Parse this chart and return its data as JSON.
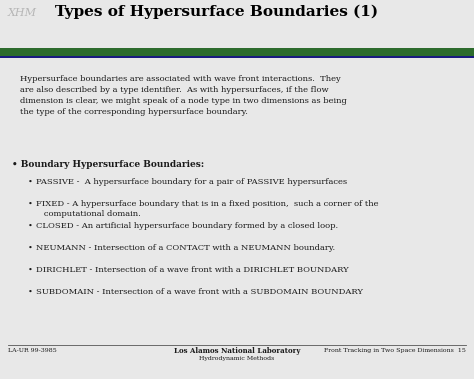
{
  "title": "Types of Hypersurface Boundaries (1)",
  "logo_text": "XHM",
  "bg_color": "#e8e8e8",
  "title_color": "#000000",
  "title_fontsize": 11,
  "header_line_green": "#2d6b2d",
  "header_line_blue": "#1a3a6b",
  "body_text": "Hypersurface boundaries are associated with wave front interactions.  They\nare also described by a type identifier.  As with hypersurfaces, if the flow\ndimension is clear, we might speak of a node type in two dimensions as being\nthe type of the corresponding hypersurface boundary.",
  "bullet_header": "• Boundary Hypersurface Boundaries:",
  "bullets": [
    "PASSIVE -  A hypersurface boundary for a pair of PASSIVE hypersurfaces",
    "FIXED - A hypersurface boundary that is in a fixed position,  such a corner of the\n   computational domain.",
    "CLOSED - An artificial hypersurface boundary formed by a closed loop.",
    "NEUMANN - Intersection of a CONTACT with a NEUMANN boundary.",
    "DIRICHLET - Intersection of a wave front with a DIRICHLET BOUNDARY",
    "SUBDOMAIN - Intersection of a wave front with a SUBDOMAIN BOUNDARY"
  ],
  "footer_left": "LA-UR 99-3985",
  "footer_center_line1": "Los Alamos National Laboratory",
  "footer_center_line2": "Hydrodynamic Methods",
  "footer_right": "Front Tracking in Two Space Dimensions  15",
  "text_color": "#1a1a1a"
}
